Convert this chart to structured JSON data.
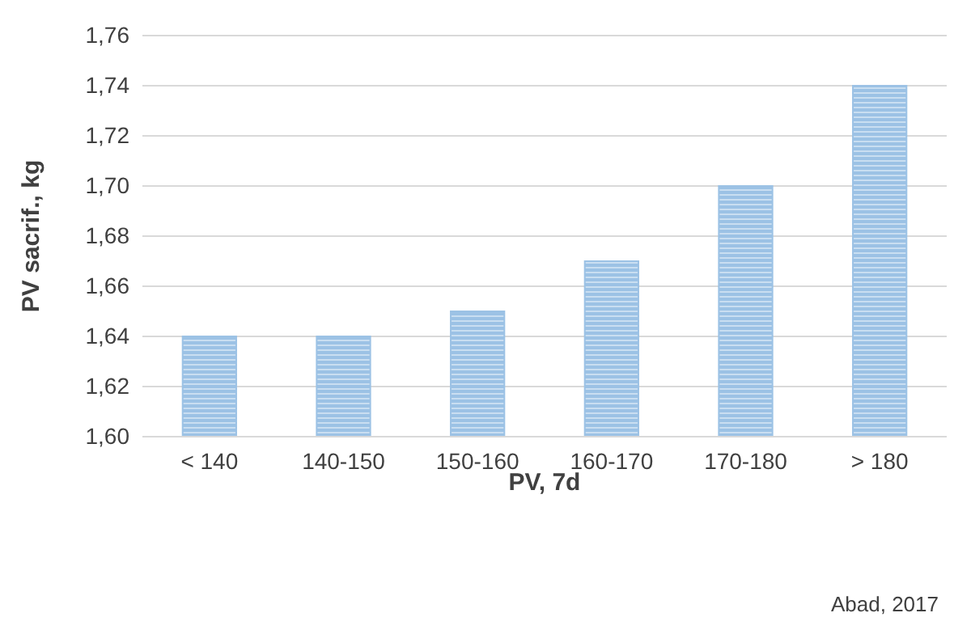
{
  "chart_data": {
    "type": "bar",
    "xlabel": "PV, 7d",
    "ylabel": "PV sacrif., kg",
    "categories": [
      "< 140",
      "140-150",
      "150-160",
      "160-170",
      "170-180",
      "> 180"
    ],
    "values": [
      1.64,
      1.64,
      1.65,
      1.67,
      1.7,
      1.74
    ],
    "color": "#9cc2e5",
    "ylim": [
      1.6,
      1.76
    ],
    "yticks": [
      {
        "value": 1.6,
        "label": "1,60"
      },
      {
        "value": 1.62,
        "label": "1,62"
      },
      {
        "value": 1.64,
        "label": "1,64"
      },
      {
        "value": 1.66,
        "label": "1,66"
      },
      {
        "value": 1.68,
        "label": "1,68"
      },
      {
        "value": 1.7,
        "label": "1,70"
      },
      {
        "value": 1.72,
        "label": "1,72"
      },
      {
        "value": 1.74,
        "label": "1,74"
      },
      {
        "value": 1.76,
        "label": "1,76"
      }
    ],
    "grid": "y",
    "annotations": [
      "Abad, 2017"
    ]
  }
}
